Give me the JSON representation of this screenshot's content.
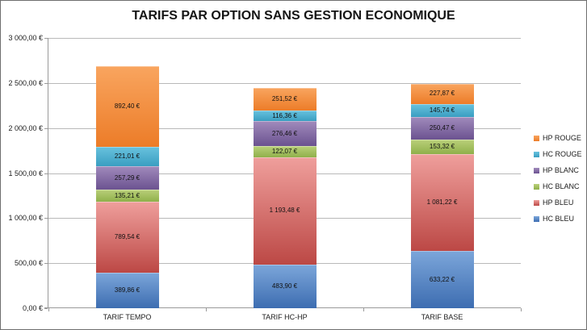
{
  "title": "TARIFS PAR OPTION SANS GESTION ECONOMIQUE",
  "chart_data": {
    "type": "bar",
    "stacked": true,
    "title": "TARIFS PAR OPTION SANS GESTION ECONOMIQUE",
    "categories": [
      "TARIF TEMPO",
      "TARIF HC-HP",
      "TARIF BASE"
    ],
    "series": [
      {
        "name": "HC BLEU",
        "values": [
          389.86,
          483.9,
          633.22
        ],
        "labels": [
          "389,86 €",
          "483,90 €",
          "633,22 €"
        ],
        "color": "#4F81BD",
        "color_top": "#7CA6DA",
        "color_bottom": "#3D6DB1"
      },
      {
        "name": "HP BLEU",
        "values": [
          789.54,
          1193.48,
          1081.22
        ],
        "labels": [
          "789,54 €",
          "1 193,48 €",
          "1 081,22 €"
        ],
        "color": "#C0504D",
        "color_top": "#EF9F9C",
        "color_bottom": "#BC4845"
      },
      {
        "name": "HC BLANC",
        "values": [
          135.21,
          122.07,
          153.32
        ],
        "labels": [
          "135,21 €",
          "122,07 €",
          "153,32 €"
        ],
        "color": "#9BBB59",
        "color_top": "#BAD07A",
        "color_bottom": "#8FB04A"
      },
      {
        "name": "HP BLANC",
        "values": [
          257.29,
          276.46,
          250.47
        ],
        "labels": [
          "257,29 €",
          "276,46 €",
          "250,47 €"
        ],
        "color": "#8064A2",
        "color_top": "#A18BBC",
        "color_bottom": "#6B5290"
      },
      {
        "name": "HC ROUGE",
        "values": [
          221.01,
          116.36,
          145.74
        ],
        "labels": [
          "221,01 €",
          "116,36 €",
          "145,74 €"
        ],
        "color": "#4BACC6",
        "color_top": "#68C2DE",
        "color_bottom": "#3A9EC1"
      },
      {
        "name": "HP ROUGE",
        "values": [
          892.4,
          251.52,
          227.87
        ],
        "labels": [
          "892,40 €",
          "251,52 €",
          "227,87 €"
        ],
        "color": "#F79646",
        "color_top": "#F9A55F",
        "color_bottom": "#EC7C28"
      }
    ],
    "legend": {
      "position": "right",
      "entries": [
        "HP ROUGE",
        "HC ROUGE",
        "HP BLANC",
        "HC BLANC",
        "HP BLEU",
        "HC BLEU"
      ]
    },
    "y_axis": {
      "min": 0,
      "max": 3000,
      "tick_step": 500,
      "tick_labels": [
        "0,00 €",
        "500,00 €",
        "1 000,00 €",
        "1 500,00 €",
        "2 000,00 €",
        "2 500,00 €",
        "3 000,00 €"
      ]
    },
    "grid": true
  }
}
